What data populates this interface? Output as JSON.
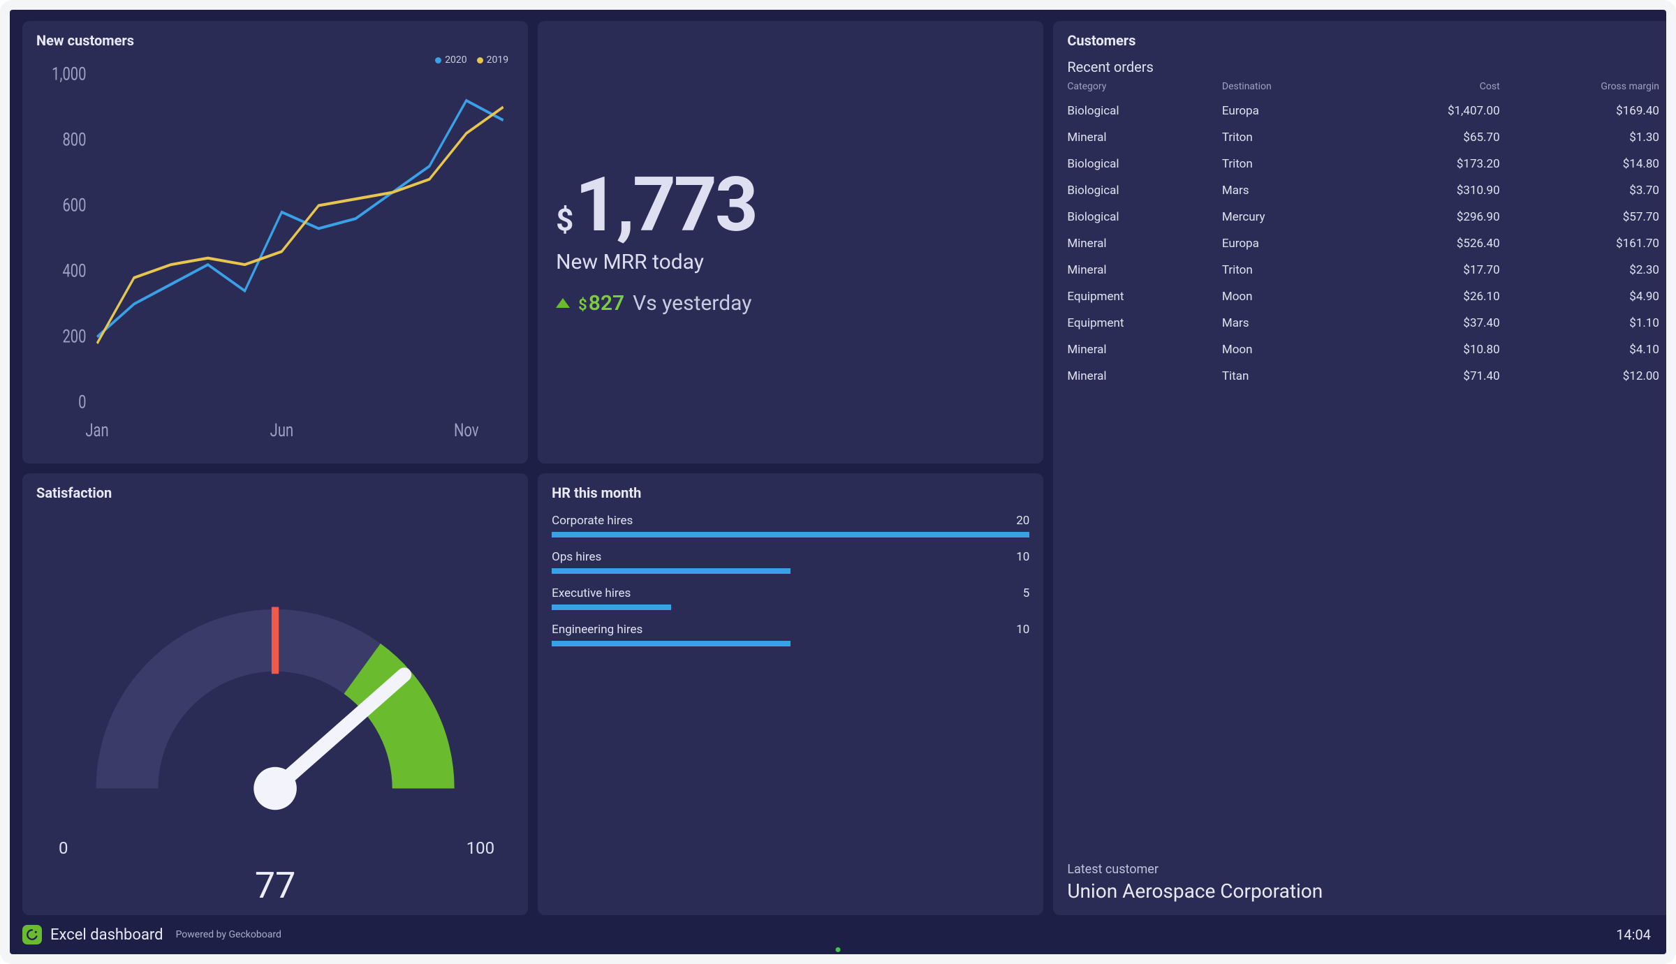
{
  "theme": {
    "page_bg": "#1e1f47",
    "card_bg": "#2b2c55",
    "text_primary": "#e8e9f5",
    "text_body": "#dfe2f2",
    "text_muted": "#9ea1c4",
    "accent_green": "#6bbb2f",
    "accent_blue": "#3aa0e8",
    "accent_yellow": "#e7c64f",
    "accent_red": "#ef5a4d",
    "frame_border": "#f3f5f7"
  },
  "new_customers": {
    "title": "New customers",
    "chart": {
      "type": "line",
      "x_labels": [
        "Jan",
        "Jun",
        "Nov"
      ],
      "y_ticks": [
        0,
        200,
        400,
        600,
        800,
        1000
      ],
      "ylim": [
        0,
        1000
      ],
      "series": [
        {
          "name": "2020",
          "color": "#3aa0e8",
          "values": [
            200,
            300,
            360,
            420,
            340,
            580,
            530,
            560,
            640,
            720,
            920,
            860
          ]
        },
        {
          "name": "2019",
          "color": "#e7c64f",
          "values": [
            180,
            380,
            420,
            440,
            420,
            460,
            600,
            620,
            640,
            680,
            820,
            900
          ]
        }
      ],
      "grid_color": "#3d3e6c",
      "label_fontsize": 13,
      "line_width": 2,
      "background_color": "#2b2c55"
    }
  },
  "mrr": {
    "currency": "$",
    "value": "1,773",
    "label": "New MRR today",
    "delta_direction": "up",
    "delta_value": "827",
    "delta_label": "Vs yesterday",
    "delta_color": "#7ecb3b"
  },
  "customers": {
    "title": "Customers",
    "subtitle": "Recent orders",
    "columns": [
      "Category",
      "Destination",
      "Cost",
      "Gross margin"
    ],
    "rows": [
      [
        "Biological",
        "Europa",
        "$1,407.00",
        "$169.40"
      ],
      [
        "Mineral",
        "Triton",
        "$65.70",
        "$1.30"
      ],
      [
        "Biological",
        "Triton",
        "$173.20",
        "$14.80"
      ],
      [
        "Biological",
        "Mars",
        "$310.90",
        "$3.70"
      ],
      [
        "Biological",
        "Mercury",
        "$296.90",
        "$57.70"
      ],
      [
        "Mineral",
        "Europa",
        "$526.40",
        "$161.70"
      ],
      [
        "Mineral",
        "Triton",
        "$17.70",
        "$2.30"
      ],
      [
        "Equipment",
        "Moon",
        "$26.10",
        "$4.90"
      ],
      [
        "Equipment",
        "Mars",
        "$37.40",
        "$1.10"
      ],
      [
        "Mineral",
        "Moon",
        "$10.80",
        "$4.10"
      ],
      [
        "Mineral",
        "Titan",
        "$71.40",
        "$12.00"
      ]
    ],
    "latest_label": "Latest customer",
    "latest_name": "Union Aerospace Corporation"
  },
  "satisfaction": {
    "title": "Satisfaction",
    "gauge": {
      "min": 0,
      "max": 100,
      "value": 77,
      "track_color": "#3a3b68",
      "red_tick_color": "#ef5a4d",
      "green_fill_color": "#6bbb2f",
      "needle_color": "#f2f3fb",
      "red_tick_at": 50,
      "green_from": 70,
      "green_to": 100
    }
  },
  "hr": {
    "title": "HR this month",
    "max": 20,
    "bar_color": "#3aa0e8",
    "items": [
      {
        "label": "Corporate hires",
        "value": 20
      },
      {
        "label": "Ops hires",
        "value": 10
      },
      {
        "label": "Executive hires",
        "value": 5
      },
      {
        "label": "Engineering hires",
        "value": 10
      }
    ]
  },
  "footer": {
    "title": "Excel dashboard",
    "powered": "Powered by Geckoboard",
    "clock": "14:04",
    "logo_bg": "#6bbb2f"
  }
}
